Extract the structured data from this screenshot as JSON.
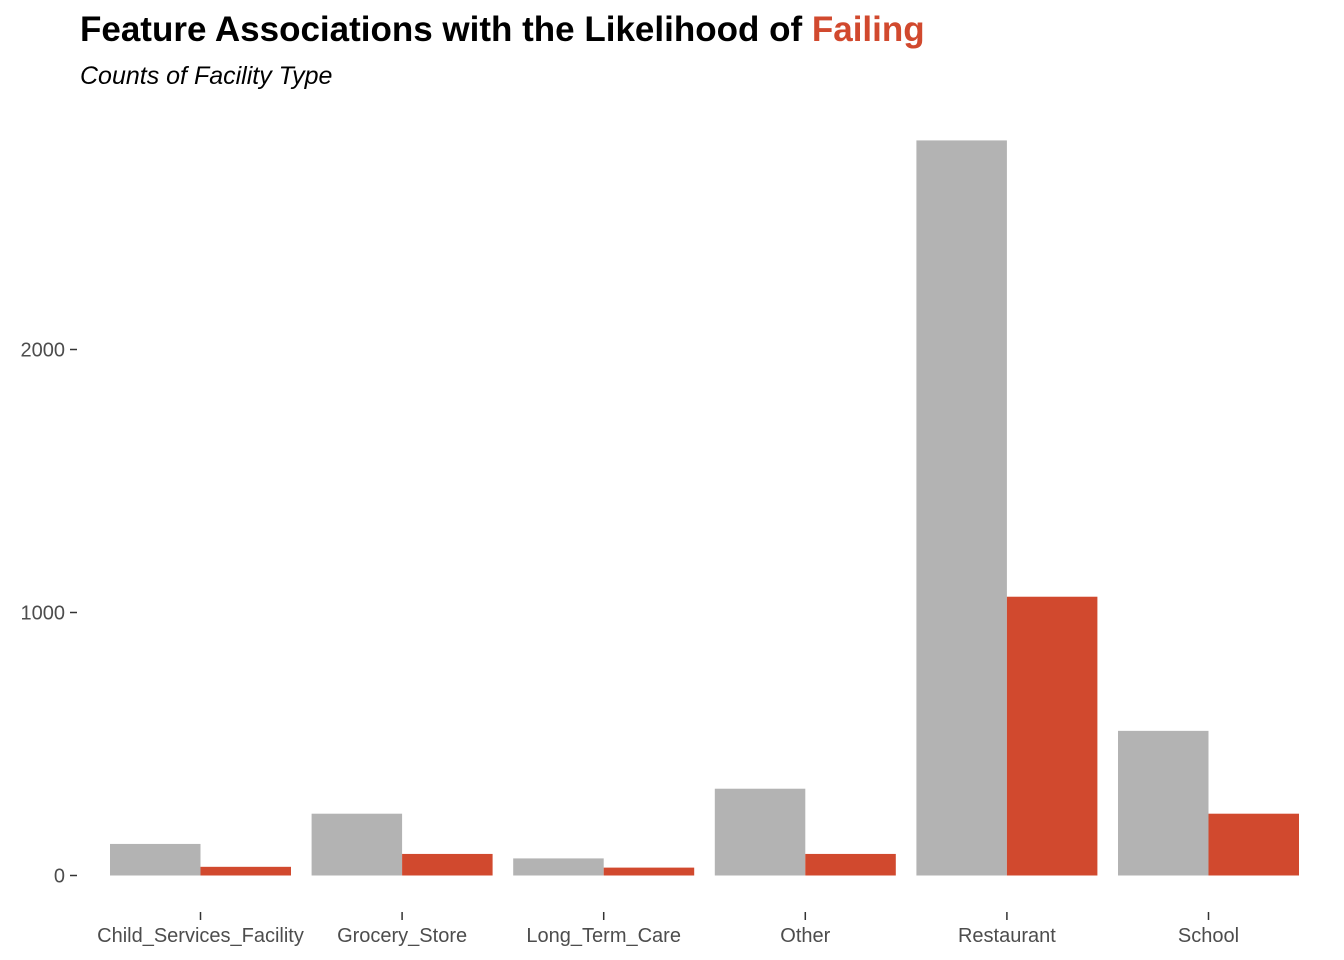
{
  "title": {
    "prefix": "Feature Associations with the Likelihood of ",
    "highlight": "Failing",
    "highlight_color": "#D1492E"
  },
  "subtitle": "Counts of Facility Type",
  "chart_data": {
    "type": "bar",
    "title": "Feature Associations with the Likelihood of Failing",
    "subtitle": "Counts of Facility Type",
    "xlabel": "",
    "ylabel": "",
    "categories": [
      "Child_Services_Facility",
      "Grocery_Store",
      "Long_Term_Care",
      "Other",
      "Restaurant",
      "School"
    ],
    "series": [
      {
        "color": "#B3B3B3",
        "values": [
          120,
          235,
          65,
          330,
          2795,
          550
        ]
      },
      {
        "color": "#D1492E",
        "values": [
          33,
          82,
          30,
          82,
          1060,
          235
        ]
      }
    ],
    "y_ticks": [
      0,
      1000,
      2000
    ],
    "ylim": [
      -100,
      2890
    ],
    "grid": false,
    "legend": "none"
  }
}
